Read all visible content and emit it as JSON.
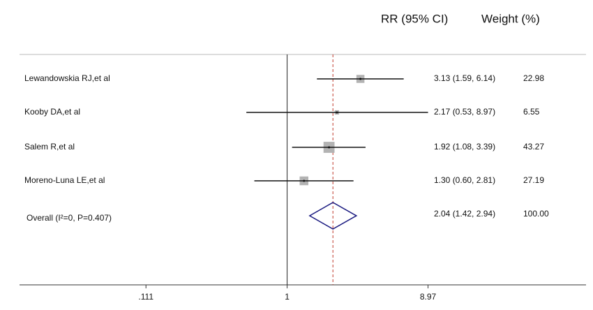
{
  "chart_data": {
    "type": "forest",
    "header": {
      "estimate": "RR (95% CI)",
      "weight": "Weight (%)"
    },
    "categories": [
      "Lewandowskia RJ,et al",
      "Kooby DA,et al",
      "Salem R,et al",
      "Moreno-Luna LE,et al"
    ],
    "series": [
      {
        "values": [
          3.13,
          2.17,
          1.92,
          1.3
        ],
        "lower": [
          1.59,
          0.53,
          1.08,
          0.6
        ],
        "upper": [
          6.14,
          8.97,
          3.39,
          2.81
        ],
        "value_labels": [
          "3.13 (1.59, 6.14)",
          "2.17 (0.53, 8.97)",
          "1.92 (1.08, 3.39)",
          "1.30 (0.60, 2.81)"
        ],
        "weights": [
          22.98,
          6.55,
          43.27,
          27.19
        ],
        "color": "#b3b3b3"
      }
    ],
    "overall": {
      "label": "Overall (I²=0, P=0.407)",
      "value": 2.04,
      "lower": 1.42,
      "upper": 2.94,
      "value_label": "2.04 (1.42, 2.94)",
      "weight": 100,
      "weight_label": "100.00",
      "color": "#1a1a80",
      "line_color": "#c0392b"
    },
    "xscale": "log",
    "xlim": [
      0.0155,
      105
    ],
    "xticks": [
      {
        "value": 0.111,
        "label": ".111"
      },
      1,
      8.97
    ]
  }
}
